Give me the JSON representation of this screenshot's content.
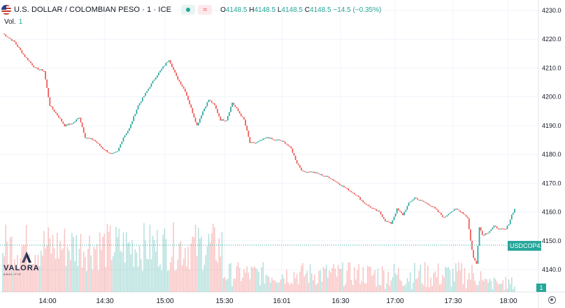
{
  "header": {
    "title": "U.S. DOLLAR / COLOMBIAN PESO · 1 · ICE",
    "wave_glyph": "≈",
    "open_label": "O",
    "open": "4148.5",
    "high_label": "H",
    "high": "4148.5",
    "low_label": "L",
    "low": "4148.5",
    "close_label": "C",
    "close": "4148.5",
    "change": "−14.5 (−0.35%)",
    "flag_icon": "us-flag-icon",
    "status_icon": "market-status-dot-icon",
    "colors": {
      "up": "#26a69a",
      "down": "#ef5350"
    }
  },
  "volume": {
    "label": "Vol.",
    "value": "1"
  },
  "logo": {
    "name": "VALORA",
    "tagline": "ANALITIK"
  },
  "price_tag": {
    "symbol": "USDCOP",
    "price": "4148.5"
  },
  "volume_tag": "1",
  "chart_data": {
    "type": "candlestick",
    "title": "U.S. DOLLAR / COLOMBIAN PESO · 1 · ICE",
    "y_ticks": [
      "4230.0",
      "4220.0",
      "4210.0",
      "4200.0",
      "4190.0",
      "4180.0",
      "4170.0",
      "4160.0",
      "4150.0",
      "4140.0"
    ],
    "ylim": [
      4136,
      4232
    ],
    "x_ticks": [
      "14:00",
      "14:30",
      "15:00",
      "15:30",
      "16:01",
      "16:30",
      "17:00",
      "17:30",
      "18:00"
    ],
    "last_price": 4148.5,
    "price_keyframes": [
      [
        0,
        4222
      ],
      [
        8,
        4219
      ],
      [
        15,
        4214
      ],
      [
        22,
        4210
      ],
      [
        28,
        4209
      ],
      [
        32,
        4197
      ],
      [
        38,
        4193
      ],
      [
        42,
        4190
      ],
      [
        48,
        4191
      ],
      [
        52,
        4193
      ],
      [
        56,
        4186
      ],
      [
        62,
        4185
      ],
      [
        68,
        4182
      ],
      [
        74,
        4180
      ],
      [
        78,
        4181
      ],
      [
        82,
        4186
      ],
      [
        86,
        4189
      ],
      [
        92,
        4197
      ],
      [
        98,
        4202
      ],
      [
        104,
        4207
      ],
      [
        110,
        4211
      ],
      [
        113,
        4213
      ],
      [
        118,
        4207
      ],
      [
        124,
        4202
      ],
      [
        128,
        4196
      ],
      [
        132,
        4190
      ],
      [
        136,
        4195
      ],
      [
        140,
        4199
      ],
      [
        144,
        4197
      ],
      [
        148,
        4192
      ],
      [
        152,
        4192
      ],
      [
        156,
        4198
      ],
      [
        160,
        4195
      ],
      [
        164,
        4192
      ],
      [
        168,
        4184
      ],
      [
        172,
        4184
      ],
      [
        176,
        4185
      ],
      [
        180,
        4186
      ],
      [
        184,
        4185
      ],
      [
        188,
        4185
      ],
      [
        192,
        4184
      ],
      [
        196,
        4182
      ],
      [
        200,
        4177
      ],
      [
        204,
        4174
      ],
      [
        210,
        4174
      ],
      [
        216,
        4173
      ],
      [
        222,
        4172
      ],
      [
        228,
        4170
      ],
      [
        234,
        4168
      ],
      [
        240,
        4166
      ],
      [
        246,
        4163
      ],
      [
        252,
        4161
      ],
      [
        256,
        4160
      ],
      [
        260,
        4157
      ],
      [
        264,
        4156
      ],
      [
        268,
        4161
      ],
      [
        272,
        4159
      ],
      [
        276,
        4163
      ],
      [
        280,
        4165
      ],
      [
        284,
        4164
      ],
      [
        288,
        4163
      ],
      [
        292,
        4162
      ],
      [
        296,
        4160
      ],
      [
        300,
        4158
      ],
      [
        304,
        4160
      ],
      [
        308,
        4161
      ],
      [
        312,
        4160
      ],
      [
        316,
        4158
      ],
      [
        318,
        4150
      ],
      [
        320,
        4144
      ],
      [
        322,
        4142
      ],
      [
        324,
        4155
      ],
      [
        326,
        4152
      ],
      [
        330,
        4153
      ],
      [
        334,
        4155
      ],
      [
        338,
        4154
      ],
      [
        342,
        4154
      ],
      [
        344,
        4156
      ],
      [
        346,
        4159
      ],
      [
        348,
        4161
      ]
    ],
    "candle_count": 349
  }
}
